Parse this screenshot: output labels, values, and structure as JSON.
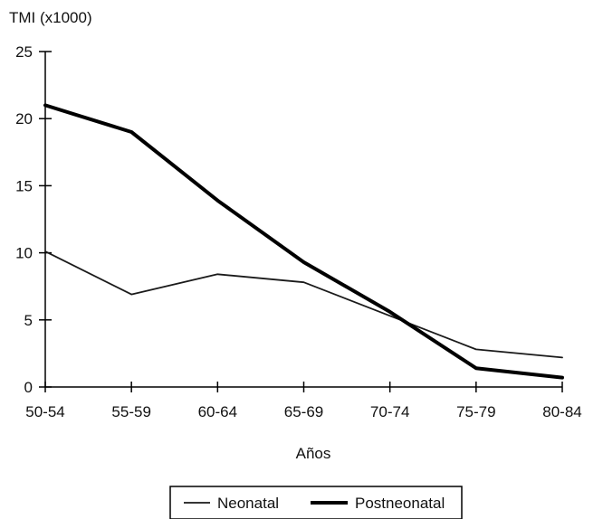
{
  "chart_data": {
    "type": "line",
    "title": "",
    "ylabel": "TMI (x1000)",
    "xlabel": "Años",
    "categories": [
      "50-54",
      "55-59",
      "60-64",
      "65-69",
      "70-74",
      "75-79",
      "80-84"
    ],
    "yticks": [
      0,
      5,
      10,
      15,
      20,
      25
    ],
    "ylim": [
      0,
      25
    ],
    "grid": false,
    "legend_position": "bottom",
    "series": [
      {
        "name": "Neonatal",
        "values": [
          10.1,
          6.9,
          8.4,
          7.8,
          5.3,
          2.8,
          2.2
        ],
        "color": "#1a1a1a",
        "weight": "thin"
      },
      {
        "name": "Postneonatal",
        "values": [
          21.0,
          19.0,
          13.9,
          9.3,
          5.6,
          1.4,
          0.7
        ],
        "color": "#000000",
        "weight": "thick"
      }
    ]
  }
}
